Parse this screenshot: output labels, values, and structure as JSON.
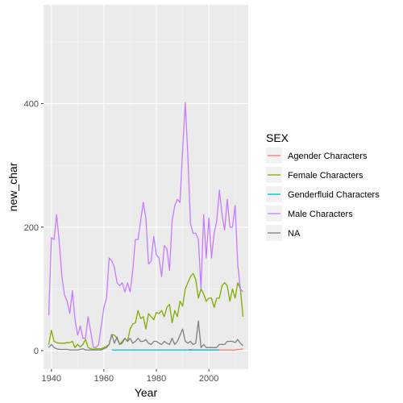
{
  "chart_data": {
    "type": "line",
    "xlabel": "Year",
    "ylabel": "new_char",
    "xlim": [
      1937,
      2015
    ],
    "ylim": [
      -30,
      560
    ],
    "x_ticks": [
      1940,
      1960,
      1980,
      2000
    ],
    "y_ticks": [
      0,
      200,
      400
    ],
    "grid": true,
    "legend": {
      "title": "SEX",
      "placement": "right",
      "entries": [
        "Agender Characters",
        "Female Characters",
        "Genderfluid Characters",
        "Male Characters",
        "NA"
      ]
    },
    "series": [
      {
        "name": "Agender Characters",
        "color": "#F8766D",
        "x": [
          1992,
          1993,
          1994,
          2005,
          2006,
          2007,
          2008,
          2009,
          2010,
          2011,
          2012,
          2013
        ],
        "y": [
          1,
          2,
          1,
          1,
          1,
          1,
          1,
          1,
          1,
          2,
          2,
          3
        ]
      },
      {
        "name": "Female Characters",
        "color": "#7CAE00",
        "x": [
          1939,
          1940,
          1941,
          1942,
          1943,
          1944,
          1945,
          1946,
          1947,
          1948,
          1949,
          1950,
          1951,
          1952,
          1953,
          1954,
          1955,
          1956,
          1957,
          1958,
          1959,
          1960,
          1961,
          1962,
          1963,
          1964,
          1965,
          1966,
          1967,
          1968,
          1969,
          1970,
          1971,
          1972,
          1973,
          1974,
          1975,
          1976,
          1977,
          1978,
          1979,
          1980,
          1981,
          1982,
          1983,
          1984,
          1985,
          1986,
          1987,
          1988,
          1989,
          1990,
          1991,
          1992,
          1993,
          1994,
          1995,
          1996,
          1997,
          1998,
          1999,
          2000,
          2001,
          2002,
          2003,
          2004,
          2005,
          2006,
          2007,
          2008,
          2009,
          2010,
          2011,
          2012,
          2013
        ],
        "y": [
          10,
          33,
          15,
          13,
          12,
          12,
          12,
          13,
          13,
          15,
          5,
          10,
          6,
          10,
          18,
          5,
          3,
          2,
          3,
          3,
          3,
          5,
          7,
          10,
          26,
          25,
          20,
          10,
          15,
          20,
          15,
          35,
          43,
          45,
          65,
          52,
          55,
          35,
          60,
          55,
          50,
          62,
          60,
          65,
          55,
          70,
          75,
          45,
          65,
          55,
          80,
          72,
          100,
          110,
          120,
          125,
          115,
          85,
          100,
          92,
          80,
          85,
          85,
          70,
          85,
          85,
          105,
          110,
          105,
          80,
          100,
          85,
          110,
          100,
          55
        ]
      },
      {
        "name": "Genderfluid Characters",
        "color": "#00BFC4",
        "x": [
          1963,
          1964,
          1965,
          1966,
          1967,
          1968,
          1969,
          1970,
          1971,
          1972,
          1973,
          1974,
          1975,
          1976,
          1977,
          1978,
          1979,
          1980,
          1981,
          1982,
          1983,
          1984,
          1985,
          1986,
          1987,
          1988,
          1989,
          1990,
          1991,
          1992,
          1993,
          1994,
          1995,
          1996,
          1997,
          1998,
          1999,
          2000,
          2001,
          2002,
          2003,
          2004
        ],
        "y": [
          1,
          1,
          1,
          1,
          1,
          1,
          1,
          1,
          1,
          1,
          1,
          1,
          1,
          1,
          1,
          1,
          1,
          1,
          1,
          1,
          1,
          1,
          1,
          1,
          1,
          1,
          1,
          1,
          1,
          1,
          1,
          1,
          1,
          1,
          1,
          1,
          1,
          1,
          1,
          1,
          1,
          1
        ]
      },
      {
        "name": "Male Characters",
        "color": "#C77CFF",
        "x": [
          1939,
          1940,
          1941,
          1942,
          1943,
          1944,
          1945,
          1946,
          1947,
          1948,
          1949,
          1950,
          1951,
          1952,
          1953,
          1954,
          1955,
          1956,
          1957,
          1958,
          1959,
          1960,
          1961,
          1962,
          1963,
          1964,
          1965,
          1966,
          1967,
          1968,
          1969,
          1970,
          1971,
          1972,
          1973,
          1974,
          1975,
          1976,
          1977,
          1978,
          1979,
          1980,
          1981,
          1982,
          1983,
          1984,
          1985,
          1986,
          1987,
          1988,
          1989,
          1990,
          1991,
          1992,
          1993,
          1994,
          1995,
          1996,
          1997,
          1998,
          1999,
          2000,
          2001,
          2002,
          2003,
          2004,
          2005,
          2006,
          2007,
          2008,
          2009,
          2010,
          2011,
          2012,
          2013
        ],
        "y": [
          57,
          183,
          180,
          220,
          175,
          120,
          90,
          80,
          60,
          97,
          50,
          25,
          40,
          20,
          20,
          55,
          30,
          5,
          5,
          10,
          40,
          70,
          85,
          150,
          145,
          135,
          110,
          105,
          110,
          95,
          110,
          95,
          130,
          180,
          180,
          210,
          240,
          215,
          140,
          145,
          185,
          155,
          150,
          120,
          170,
          165,
          130,
          210,
          235,
          245,
          240,
          325,
          402,
          315,
          205,
          190,
          190,
          180,
          100,
          220,
          150,
          215,
          150,
          190,
          210,
          260,
          220,
          195,
          245,
          200,
          200,
          235,
          140,
          100,
          95
        ]
      },
      {
        "name": "NA",
        "color": "#808080",
        "x": [
          1939,
          1940,
          1941,
          1942,
          1943,
          1944,
          1945,
          1946,
          1947,
          1948,
          1949,
          1950,
          1951,
          1952,
          1953,
          1954,
          1955,
          1956,
          1957,
          1958,
          1959,
          1960,
          1961,
          1962,
          1963,
          1964,
          1965,
          1966,
          1967,
          1968,
          1969,
          1970,
          1971,
          1972,
          1973,
          1974,
          1975,
          1976,
          1977,
          1978,
          1979,
          1980,
          1981,
          1982,
          1983,
          1984,
          1985,
          1986,
          1987,
          1988,
          1989,
          1990,
          1991,
          1992,
          1993,
          1994,
          1995,
          1996,
          1997,
          1998,
          1999,
          2000,
          2001,
          2002,
          2003,
          2004,
          2005,
          2006,
          2007,
          2008,
          2009,
          2010,
          2011,
          2012,
          2013
        ],
        "y": [
          5,
          10,
          5,
          3,
          2,
          2,
          2,
          2,
          1,
          1,
          1,
          1,
          2,
          3,
          1,
          1,
          1,
          1,
          1,
          1,
          1,
          3,
          5,
          10,
          26,
          12,
          22,
          10,
          12,
          20,
          15,
          20,
          12,
          15,
          20,
          15,
          15,
          18,
          12,
          10,
          15,
          15,
          12,
          10,
          15,
          12,
          10,
          20,
          10,
          15,
          25,
          35,
          15,
          12,
          15,
          10,
          12,
          48,
          5,
          10,
          5,
          5,
          5,
          5,
          5,
          10,
          10,
          10,
          15,
          15,
          15,
          13,
          18,
          12,
          8
        ]
      }
    ]
  }
}
